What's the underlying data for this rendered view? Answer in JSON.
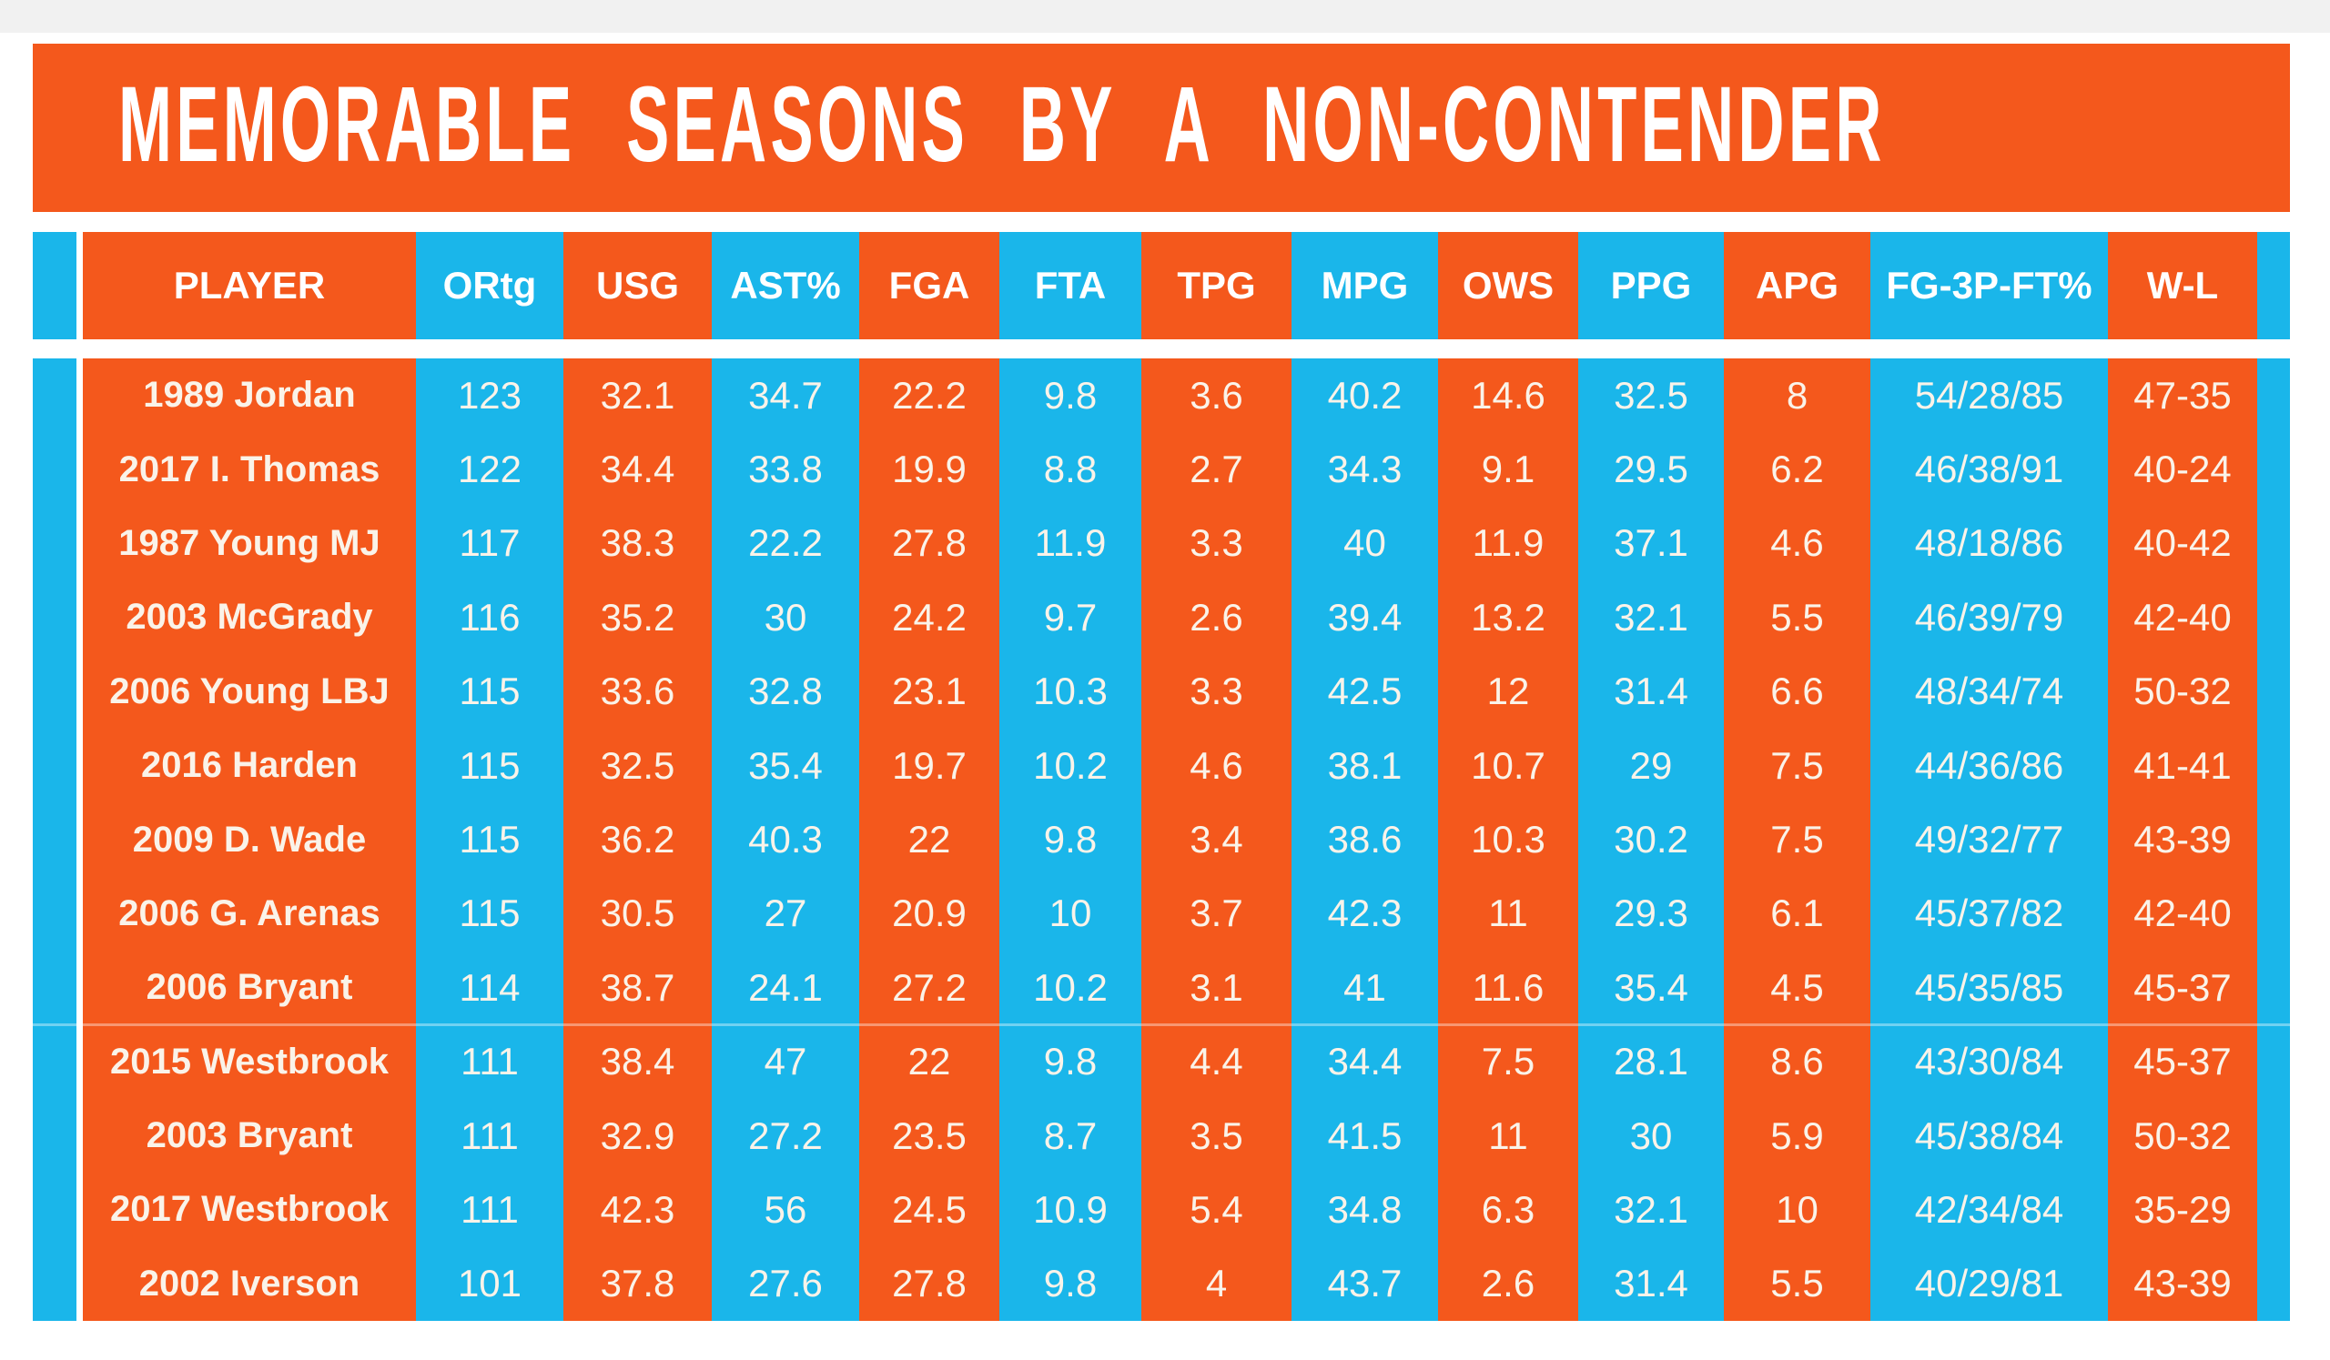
{
  "title_banner": {
    "title": "MEMORABLE SEASONS BY A NON-CONTENDER"
  },
  "colors": {
    "orange": "#F4581C",
    "cyan": "#1AB6EA",
    "cream": "#FAF3E9",
    "header_text": "#FFFFFF",
    "top_band": "#F1F1F1",
    "page_background": "#FFFFFF"
  },
  "chart_data": {
    "type": "table",
    "title": "MEMORABLE SEASONS BY A NON-CONTENDER",
    "legend_position": "none",
    "grid": false,
    "columns": [
      {
        "label": "PLAYER",
        "color": "orange"
      },
      {
        "label": "ORtg",
        "color": "cyan"
      },
      {
        "label": "USG",
        "color": "orange"
      },
      {
        "label": "AST%",
        "color": "cyan"
      },
      {
        "label": "FGA",
        "color": "orange"
      },
      {
        "label": "FTA",
        "color": "cyan"
      },
      {
        "label": "TPG",
        "color": "orange"
      },
      {
        "label": "MPG",
        "color": "cyan"
      },
      {
        "label": "OWS",
        "color": "orange"
      },
      {
        "label": "PPG",
        "color": "cyan"
      },
      {
        "label": "APG",
        "color": "orange"
      },
      {
        "label": "FG-3P-FT%",
        "color": "cyan"
      },
      {
        "label": "W-L",
        "color": "orange"
      }
    ],
    "rows": [
      [
        "1989 Jordan",
        "123",
        "32.1",
        "34.7",
        "22.2",
        "9.8",
        "3.6",
        "40.2",
        "14.6",
        "32.5",
        "8",
        "54/28/85",
        "47-35"
      ],
      [
        "2017 I. Thomas",
        "122",
        "34.4",
        "33.8",
        "19.9",
        "8.8",
        "2.7",
        "34.3",
        "9.1",
        "29.5",
        "6.2",
        "46/38/91",
        "40-24"
      ],
      [
        "1987 Young MJ",
        "117",
        "38.3",
        "22.2",
        "27.8",
        "11.9",
        "3.3",
        "40",
        "11.9",
        "37.1",
        "4.6",
        "48/18/86",
        "40-42"
      ],
      [
        "2003 McGrady",
        "116",
        "35.2",
        "30",
        "24.2",
        "9.7",
        "2.6",
        "39.4",
        "13.2",
        "32.1",
        "5.5",
        "46/39/79",
        "42-40"
      ],
      [
        "2006 Young LBJ",
        "115",
        "33.6",
        "32.8",
        "23.1",
        "10.3",
        "3.3",
        "42.5",
        "12",
        "31.4",
        "6.6",
        "48/34/74",
        "50-32"
      ],
      [
        "2016 Harden",
        "115",
        "32.5",
        "35.4",
        "19.7",
        "10.2",
        "4.6",
        "38.1",
        "10.7",
        "29",
        "7.5",
        "44/36/86",
        "41-41"
      ],
      [
        "2009 D. Wade",
        "115",
        "36.2",
        "40.3",
        "22",
        "9.8",
        "3.4",
        "38.6",
        "10.3",
        "30.2",
        "7.5",
        "49/32/77",
        "43-39"
      ],
      [
        "2006 G. Arenas",
        "115",
        "30.5",
        "27",
        "20.9",
        "10",
        "3.7",
        "42.3",
        "11",
        "29.3",
        "6.1",
        "45/37/82",
        "42-40"
      ],
      [
        "2006 Bryant",
        "114",
        "38.7",
        "24.1",
        "27.2",
        "10.2",
        "3.1",
        "41",
        "11.6",
        "35.4",
        "4.5",
        "45/35/85",
        "45-37"
      ],
      [
        "2015 Westbrook",
        "111",
        "38.4",
        "47",
        "22",
        "9.8",
        "4.4",
        "34.4",
        "7.5",
        "28.1",
        "8.6",
        "43/30/84",
        "45-37"
      ],
      [
        "2003 Bryant",
        "111",
        "32.9",
        "27.2",
        "23.5",
        "8.7",
        "3.5",
        "41.5",
        "11",
        "30",
        "5.9",
        "45/38/84",
        "50-32"
      ],
      [
        "2017 Westbrook",
        "111",
        "42.3",
        "56",
        "24.5",
        "10.9",
        "5.4",
        "34.8",
        "6.3",
        "32.1",
        "10",
        "42/34/84",
        "35-29"
      ],
      [
        "2002 Iverson",
        "101",
        "37.8",
        "27.6",
        "27.8",
        "9.8",
        "4",
        "43.7",
        "2.6",
        "31.4",
        "5.5",
        "40/29/81",
        "43-39"
      ]
    ]
  }
}
